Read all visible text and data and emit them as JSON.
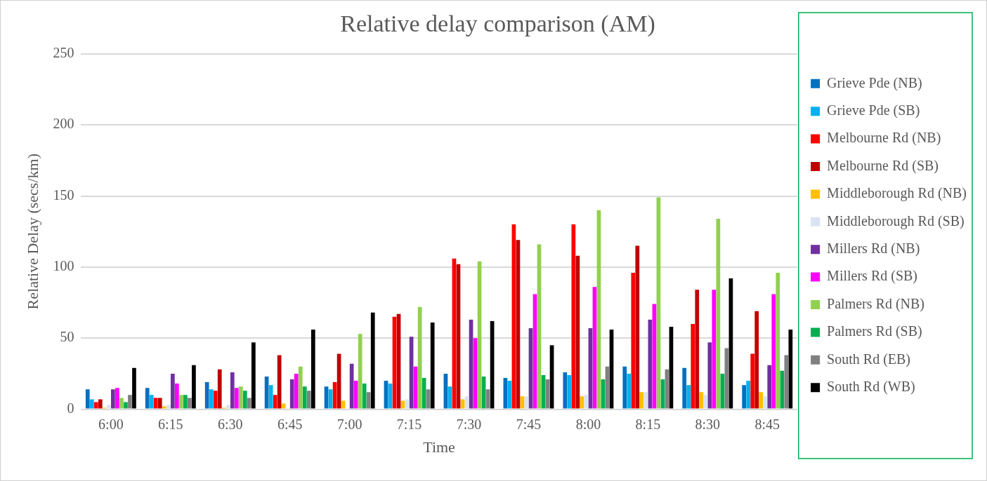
{
  "chart_data": {
    "type": "bar",
    "title": "Relative delay comparison (AM)",
    "xlabel": "Time",
    "ylabel": "Relative Delay (secs/km)",
    "categories": [
      "6:00",
      "6:15",
      "6:30",
      "6:45",
      "7:00",
      "7:15",
      "7:30",
      "7:45",
      "8:00",
      "8:15",
      "8:30",
      "8:45"
    ],
    "ylim": [
      0,
      250
    ],
    "yticks": [
      0,
      50,
      100,
      150,
      200,
      250
    ],
    "grid": "y",
    "legend": "right",
    "series": [
      {
        "name": "Grieve Pde (NB)",
        "color": "#0070c0",
        "values": [
          14,
          15,
          19,
          23,
          16,
          20,
          25,
          22,
          26,
          30,
          29,
          17
        ]
      },
      {
        "name": "Grieve Pde (SB)",
        "color": "#00b0f0",
        "values": [
          7,
          10,
          14,
          17,
          14,
          18,
          16,
          20,
          24,
          25,
          17,
          20
        ]
      },
      {
        "name": "Melbourne Rd (NB)",
        "color": "#ff0000",
        "values": [
          5,
          8,
          13,
          10,
          19,
          65,
          106,
          130,
          130,
          96,
          60,
          39
        ]
      },
      {
        "name": "Melbourne Rd (SB)",
        "color": "#c00000",
        "values": [
          7,
          8,
          28,
          38,
          39,
          67,
          102,
          119,
          108,
          115,
          84,
          69
        ]
      },
      {
        "name": "Middleborough Rd (NB)",
        "color": "#ffc000",
        "values": [
          1,
          2,
          1,
          4,
          6,
          6,
          7,
          9,
          9,
          12,
          12,
          12
        ]
      },
      {
        "name": "Middleborough Rd (SB)",
        "color": "#dae3f3",
        "values": [
          3,
          3,
          3,
          null,
          null,
          7,
          9,
          9,
          10,
          12,
          10,
          9
        ]
      },
      {
        "name": "Millers Rd (NB)",
        "color": "#7030a0",
        "values": [
          14,
          25,
          26,
          21,
          32,
          51,
          63,
          57,
          57,
          63,
          47,
          31
        ]
      },
      {
        "name": "Millers Rd (SB)",
        "color": "#ff00ff",
        "values": [
          15,
          18,
          15,
          25,
          20,
          30,
          50,
          81,
          86,
          74,
          84,
          81
        ]
      },
      {
        "name": "Palmers Rd (NB)",
        "color": "#92d050",
        "values": [
          8,
          10,
          16,
          30,
          53,
          72,
          104,
          116,
          140,
          149,
          134,
          96
        ]
      },
      {
        "name": "Palmers Rd (SB)",
        "color": "#00b050",
        "values": [
          5,
          10,
          13,
          16,
          18,
          22,
          23,
          24,
          21,
          21,
          25,
          27
        ]
      },
      {
        "name": "South Rd (EB)",
        "color": "#808080",
        "values": [
          10,
          8,
          8,
          13,
          12,
          14,
          14,
          21,
          30,
          28,
          43,
          38
        ]
      },
      {
        "name": "South Rd (WB)",
        "color": "#000000",
        "values": [
          29,
          31,
          47,
          56,
          68,
          61,
          62,
          45,
          56,
          58,
          92,
          56
        ]
      }
    ]
  }
}
